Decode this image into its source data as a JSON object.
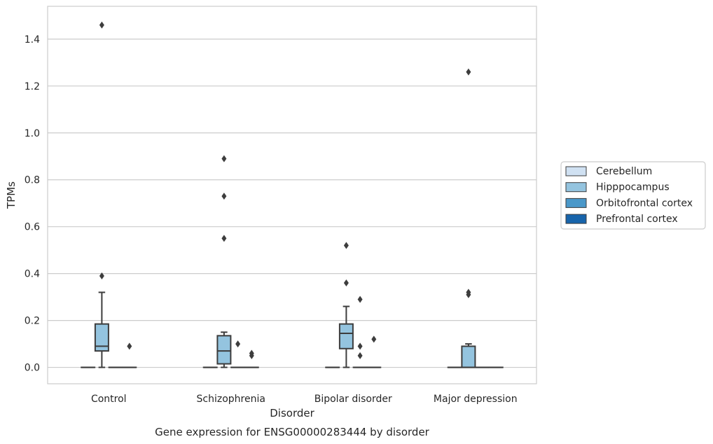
{
  "chart_data": {
    "type": "box",
    "title": "",
    "caption": "Gene expression for ENSG00000283444 by disorder",
    "xlabel": "Disorder",
    "ylabel": "TPMs",
    "ylim": [
      -0.07,
      1.54
    ],
    "yticks": [
      "0.0",
      "0.2",
      "0.4",
      "0.6",
      "0.8",
      "1.0",
      "1.2",
      "1.4"
    ],
    "categories": [
      "Control",
      "Schizophrenia",
      "Bipolar disorder",
      "Major depression"
    ],
    "grid": "horizontal",
    "legend_position": "right",
    "series": [
      {
        "name": "Cerebellum",
        "color": "#d0e1f2",
        "boxes": [
          {
            "q1": 0,
            "median": 0,
            "q3": 0,
            "whislo": 0,
            "whishi": 0,
            "fliers": []
          },
          {
            "q1": 0,
            "median": 0,
            "q3": 0,
            "whislo": 0,
            "whishi": 0,
            "fliers": []
          },
          {
            "q1": 0,
            "median": 0,
            "q3": 0,
            "whislo": 0,
            "whishi": 0,
            "fliers": []
          },
          {
            "q1": 0,
            "median": 0,
            "q3": 0,
            "whislo": 0,
            "whishi": 0,
            "fliers": []
          }
        ]
      },
      {
        "name": "Hipppocampus",
        "color": "#94c4df",
        "boxes": [
          {
            "q1": 0.07,
            "median": 0.09,
            "q3": 0.185,
            "whislo": 0,
            "whishi": 0.32,
            "fliers": [
              0.39,
              1.46
            ]
          },
          {
            "q1": 0.015,
            "median": 0.07,
            "q3": 0.135,
            "whislo": 0,
            "whishi": 0.15,
            "fliers": [
              0.55,
              0.73,
              0.89
            ]
          },
          {
            "q1": 0.08,
            "median": 0.145,
            "q3": 0.185,
            "whislo": 0,
            "whishi": 0.26,
            "fliers": [
              0.36,
              0.52
            ]
          },
          {
            "q1": 0,
            "median": 0,
            "q3": 0.09,
            "whislo": 0,
            "whishi": 0.1,
            "fliers": [
              0.31,
              0.32,
              1.26
            ]
          }
        ]
      },
      {
        "name": "Orbitofrontal cortex",
        "color": "#4a98c9",
        "boxes": [
          {
            "q1": 0,
            "median": 0,
            "q3": 0,
            "whislo": 0,
            "whishi": 0,
            "fliers": []
          },
          {
            "q1": 0,
            "median": 0,
            "q3": 0,
            "whislo": 0,
            "whishi": 0,
            "fliers": [
              0.1
            ]
          },
          {
            "q1": 0,
            "median": 0,
            "q3": 0,
            "whislo": 0,
            "whishi": 0,
            "fliers": [
              0.05,
              0.09,
              0.29
            ]
          },
          {
            "q1": 0,
            "median": 0,
            "q3": 0,
            "whislo": 0,
            "whishi": 0,
            "fliers": []
          }
        ]
      },
      {
        "name": "Prefrontal cortex",
        "color": "#1764ab",
        "boxes": [
          {
            "q1": 0,
            "median": 0,
            "q3": 0,
            "whislo": 0,
            "whishi": 0,
            "fliers": [
              0.09
            ]
          },
          {
            "q1": 0,
            "median": 0,
            "q3": 0,
            "whislo": 0,
            "whishi": 0,
            "fliers": [
              0.05,
              0.06
            ]
          },
          {
            "q1": 0,
            "median": 0,
            "q3": 0,
            "whislo": 0,
            "whishi": 0,
            "fliers": [
              0.12
            ]
          },
          {
            "q1": 0,
            "median": 0,
            "q3": 0,
            "whislo": 0,
            "whishi": 0,
            "fliers": []
          }
        ]
      }
    ]
  }
}
